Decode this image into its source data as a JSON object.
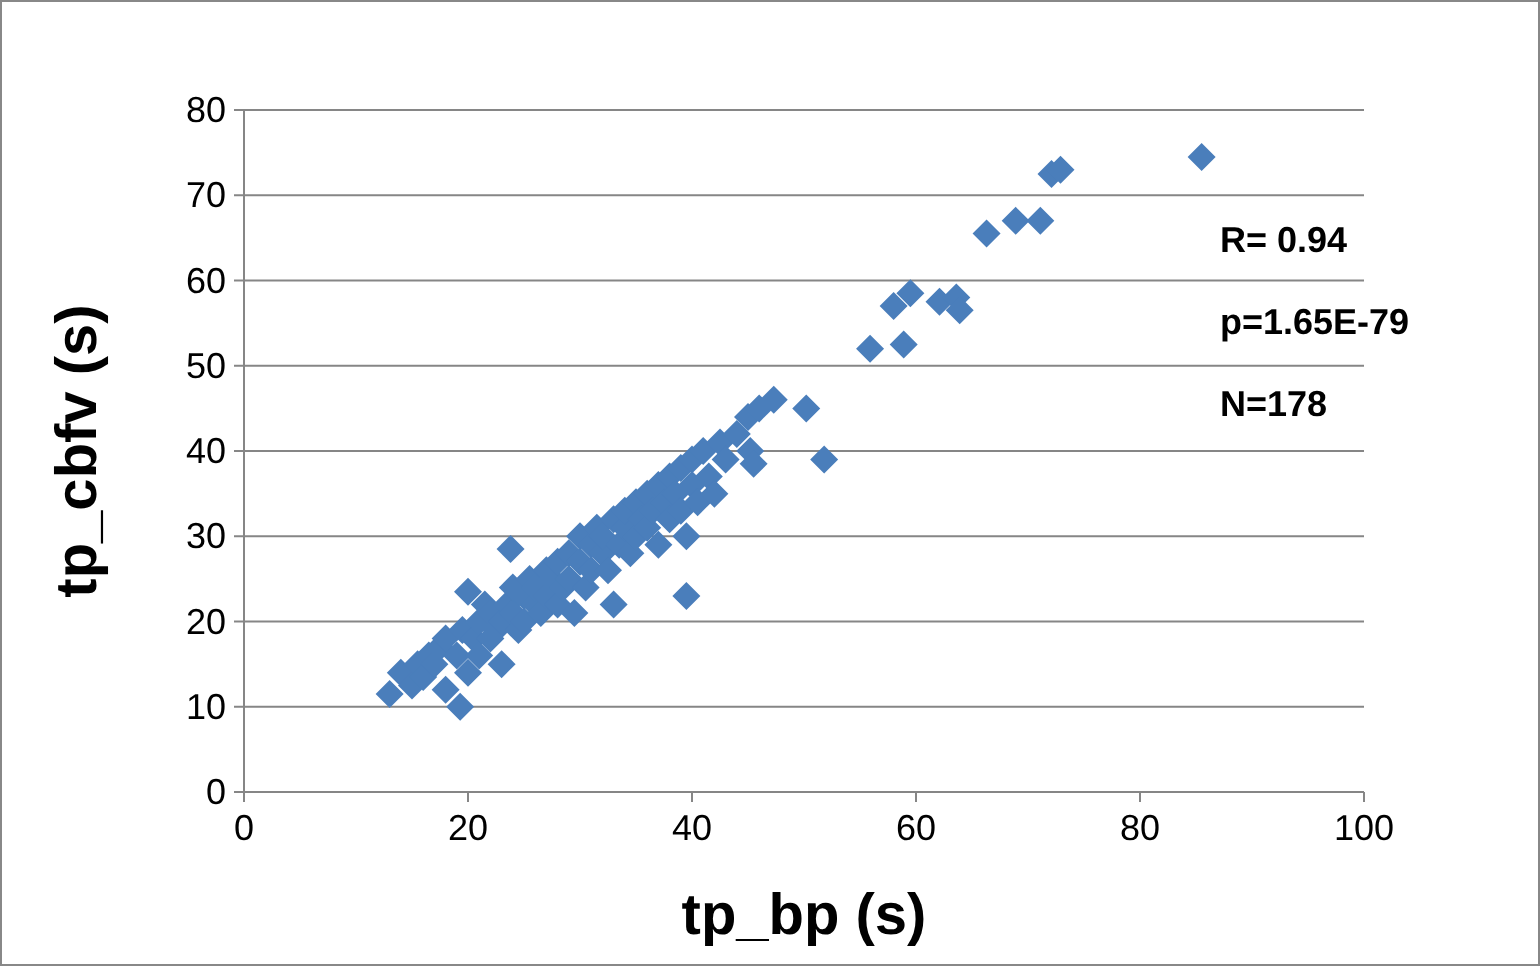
{
  "chart_data": {
    "type": "scatter",
    "xlabel": "tp_bp (s)",
    "ylabel": "tp_cbfv (s)",
    "xlim": [
      0,
      100
    ],
    "ylim": [
      0,
      80
    ],
    "xticks": [
      0,
      20,
      40,
      60,
      80,
      100
    ],
    "yticks": [
      0,
      10,
      20,
      30,
      40,
      50,
      60,
      70,
      80
    ],
    "grid": "y",
    "marker": "diamond",
    "annotations": [
      "R= 0.94",
      "p=1.65E-79",
      "N=178"
    ],
    "series": [
      {
        "color": "#4a7ebb",
        "x": [
          13,
          14,
          15,
          15.5,
          16,
          16.5,
          17,
          17.5,
          18,
          18,
          19,
          19.3,
          19.5,
          20,
          20,
          20.5,
          21,
          21,
          21.5,
          22,
          22,
          22.5,
          23,
          23,
          23.5,
          23.8,
          24,
          24,
          24.5,
          25,
          25,
          25.5,
          26,
          26,
          26.5,
          27,
          27,
          27.5,
          28,
          28,
          28.5,
          29,
          29,
          29.5,
          30,
          30,
          30.5,
          31,
          31,
          31.5,
          32,
          32,
          32.5,
          33,
          33,
          33.5,
          34,
          34,
          34.5,
          35,
          35,
          35.5,
          36,
          36,
          36.5,
          37,
          37,
          37.5,
          38,
          38,
          38.5,
          39,
          39,
          39.5,
          39.5,
          40,
          40,
          40.5,
          41,
          41.5,
          42,
          42.5,
          43,
          44,
          45,
          45.2,
          45.5,
          46,
          47.3,
          50.2,
          51.8,
          55.9,
          58,
          58.9,
          59.5,
          62.1,
          63.6,
          63.9,
          66.3,
          68.9,
          71.1,
          72.1,
          72.9,
          85.5
        ],
        "values": [
          11.5,
          14,
          12.5,
          15,
          13.5,
          16,
          15,
          17,
          12,
          18,
          16,
          10,
          19,
          14,
          23.5,
          18,
          20,
          16,
          22,
          18,
          21,
          19,
          20,
          15,
          22,
          28.5,
          21,
          24,
          19,
          23,
          20,
          25,
          22,
          24,
          21,
          26,
          23,
          25,
          22,
          27,
          24,
          28,
          25,
          21,
          27,
          30,
          24,
          29,
          26,
          31,
          28,
          30,
          26,
          32,
          22,
          29,
          31,
          33,
          28,
          30,
          34,
          32,
          35,
          31,
          33,
          29,
          36,
          34,
          32,
          37,
          35,
          33,
          38,
          30,
          23,
          36,
          39,
          34,
          40,
          37,
          35,
          41,
          39,
          42,
          44,
          40,
          38.5,
          45,
          46,
          45,
          39,
          52,
          57,
          52.5,
          58.5,
          57.5,
          58,
          56.5,
          65.5,
          67,
          67,
          72.5,
          73,
          74.5
        ]
      }
    ]
  }
}
